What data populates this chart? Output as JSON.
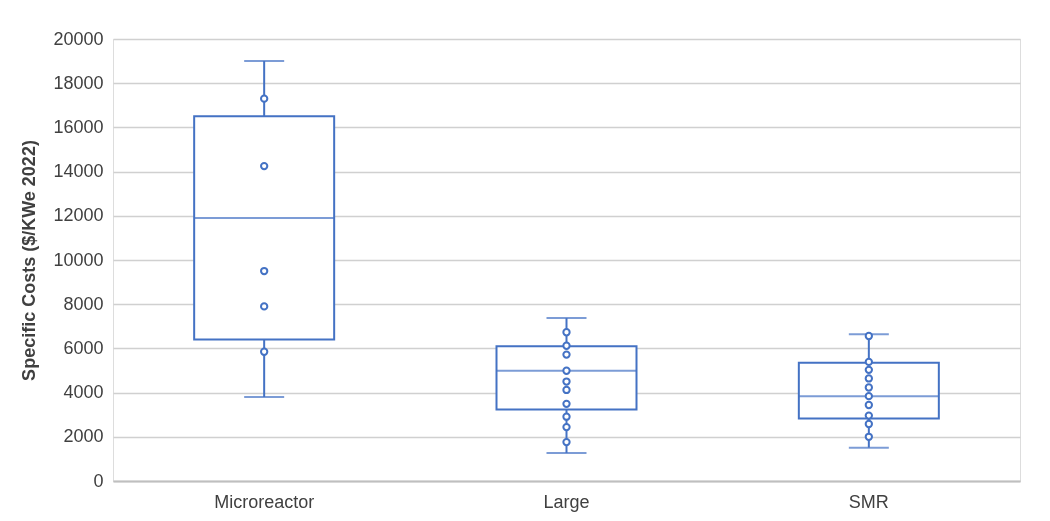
{
  "chart_data": {
    "type": "box",
    "ylabel": "Specific Costs ($/KWe 2022)",
    "categories": [
      "Microreactor",
      "Large",
      "SMR"
    ],
    "color": "#4472c4",
    "boxes": [
      {
        "low": 3800,
        "q1": 6400,
        "median": 11900,
        "q3": 16500,
        "high": 19000
      },
      {
        "low": 1270,
        "q1": 3240,
        "median": 4990,
        "q3": 6100,
        "high": 7370
      },
      {
        "low": 1510,
        "q1": 2830,
        "median": 3840,
        "q3": 5350,
        "high": 6640
      }
    ],
    "series": [
      {
        "type": "scatter",
        "color": "#4472c4",
        "marker": "circle",
        "x": [
          "Microreactor",
          "Microreactor",
          "Microreactor",
          "Microreactor",
          "Microreactor",
          "Large",
          "Large",
          "Large",
          "Large",
          "Large",
          "Large",
          "Large",
          "Large",
          "Large",
          "Large",
          "SMR",
          "SMR",
          "SMR",
          "SMR",
          "SMR",
          "SMR",
          "SMR",
          "SMR",
          "SMR",
          "SMR"
        ],
        "values": [
          17300,
          14250,
          9500,
          7900,
          5850,
          6730,
          6120,
          5720,
          4990,
          4500,
          4120,
          3490,
          2910,
          2440,
          1760,
          6560,
          5390,
          5030,
          4640,
          4230,
          3840,
          3440,
          2960,
          2580,
          2000
        ]
      }
    ],
    "ylim": [
      0,
      20000
    ],
    "yticks": [
      0,
      2000,
      4000,
      6000,
      8000,
      10000,
      12000,
      14000,
      16000,
      18000,
      20000
    ],
    "grid": "y"
  }
}
